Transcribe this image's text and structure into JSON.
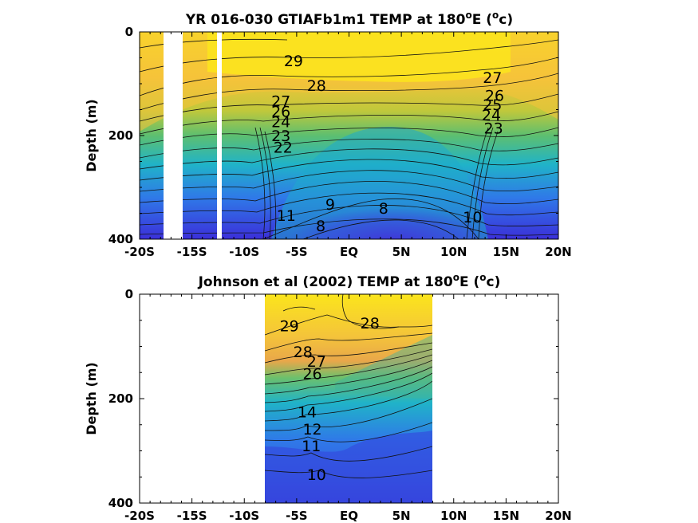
{
  "chart_data": [
    {
      "type": "heatmap",
      "plot_style": "filled contour",
      "title_main": "YR 016-030 GTIAFb1m1 TEMP at 180",
      "title_super": "o",
      "title_mid": "E (",
      "title_unit_super": "o",
      "title_end": "c)",
      "ylabel": "Depth (m)",
      "x_ticks": [
        "-20S",
        "-15S",
        "-10S",
        "-5S",
        "EQ",
        "5N",
        "10N",
        "15N",
        "20N"
      ],
      "x_tick_values": [
        -20,
        -15,
        -10,
        -5,
        0,
        5,
        10,
        15,
        20
      ],
      "y_ticks": [
        "0",
        "200",
        "400"
      ],
      "y_tick_values": [
        0,
        200,
        400
      ],
      "xlim": [
        -20,
        20
      ],
      "ylim": [
        0,
        400
      ],
      "y_reversed": true,
      "colormap": [
        "#3b2fd9",
        "#2f79e8",
        "#20b3c8",
        "#4ec27f",
        "#a6c73b",
        "#f3c232",
        "#fbe51c"
      ],
      "missing_bands": [
        [
          -18.7,
          -17.0
        ],
        [
          -11.3,
          -10.9
        ]
      ],
      "contour_labels": [
        {
          "text": "29",
          "x": -5.3,
          "y": 55
        },
        {
          "text": "28",
          "x": -3.1,
          "y": 103
        },
        {
          "text": "27",
          "x": -6.5,
          "y": 133
        },
        {
          "text": "26",
          "x": -6.5,
          "y": 153
        },
        {
          "text": "24",
          "x": -6.5,
          "y": 173
        },
        {
          "text": "23",
          "x": -6.5,
          "y": 200
        },
        {
          "text": "22",
          "x": -6.3,
          "y": 222
        },
        {
          "text": "9",
          "x": -1.8,
          "y": 332
        },
        {
          "text": "8",
          "x": 3.3,
          "y": 340
        },
        {
          "text": "11",
          "x": -6.0,
          "y": 354
        },
        {
          "text": "8",
          "x": -2.7,
          "y": 374
        },
        {
          "text": "27",
          "x": 13.7,
          "y": 88
        },
        {
          "text": "26",
          "x": 13.9,
          "y": 122
        },
        {
          "text": "25",
          "x": 13.7,
          "y": 140
        },
        {
          "text": "24",
          "x": 13.6,
          "y": 160
        },
        {
          "text": "23",
          "x": 13.8,
          "y": 185
        },
        {
          "text": "10",
          "x": 11.8,
          "y": 357
        }
      ]
    },
    {
      "type": "heatmap",
      "plot_style": "filled contour",
      "title_main": "Johnson et al (2002) TEMP at 180",
      "title_super": "o",
      "title_mid": "E (",
      "title_unit_super": "o",
      "title_end": "c)",
      "ylabel": "Depth (m)",
      "x_ticks": [
        "-20S",
        "-15S",
        "-10S",
        "-5S",
        "EQ",
        "5N",
        "10N",
        "15N",
        "20N"
      ],
      "x_tick_values": [
        -20,
        -15,
        -10,
        -5,
        0,
        5,
        10,
        15,
        20
      ],
      "y_ticks": [
        "0",
        "200",
        "400"
      ],
      "y_tick_values": [
        0,
        200,
        400
      ],
      "xlim": [
        -20,
        20
      ],
      "ylim": [
        0,
        400
      ],
      "y_reversed": true,
      "data_xlim": [
        -8,
        8
      ],
      "colormap": [
        "#3b2fd9",
        "#2f79e8",
        "#20b3c8",
        "#4ec27f",
        "#a6c73b",
        "#f3c232",
        "#fbe51c"
      ],
      "contour_labels": [
        {
          "text": "29",
          "x": -5.7,
          "y": 60
        },
        {
          "text": "28",
          "x": 2.0,
          "y": 55
        },
        {
          "text": "28",
          "x": -4.4,
          "y": 110
        },
        {
          "text": "27",
          "x": -3.1,
          "y": 128
        },
        {
          "text": "26",
          "x": -3.5,
          "y": 152
        },
        {
          "text": "14",
          "x": -4.0,
          "y": 225
        },
        {
          "text": "12",
          "x": -3.5,
          "y": 258
        },
        {
          "text": "11",
          "x": -3.6,
          "y": 290
        },
        {
          "text": "10",
          "x": -3.1,
          "y": 345
        }
      ]
    }
  ]
}
